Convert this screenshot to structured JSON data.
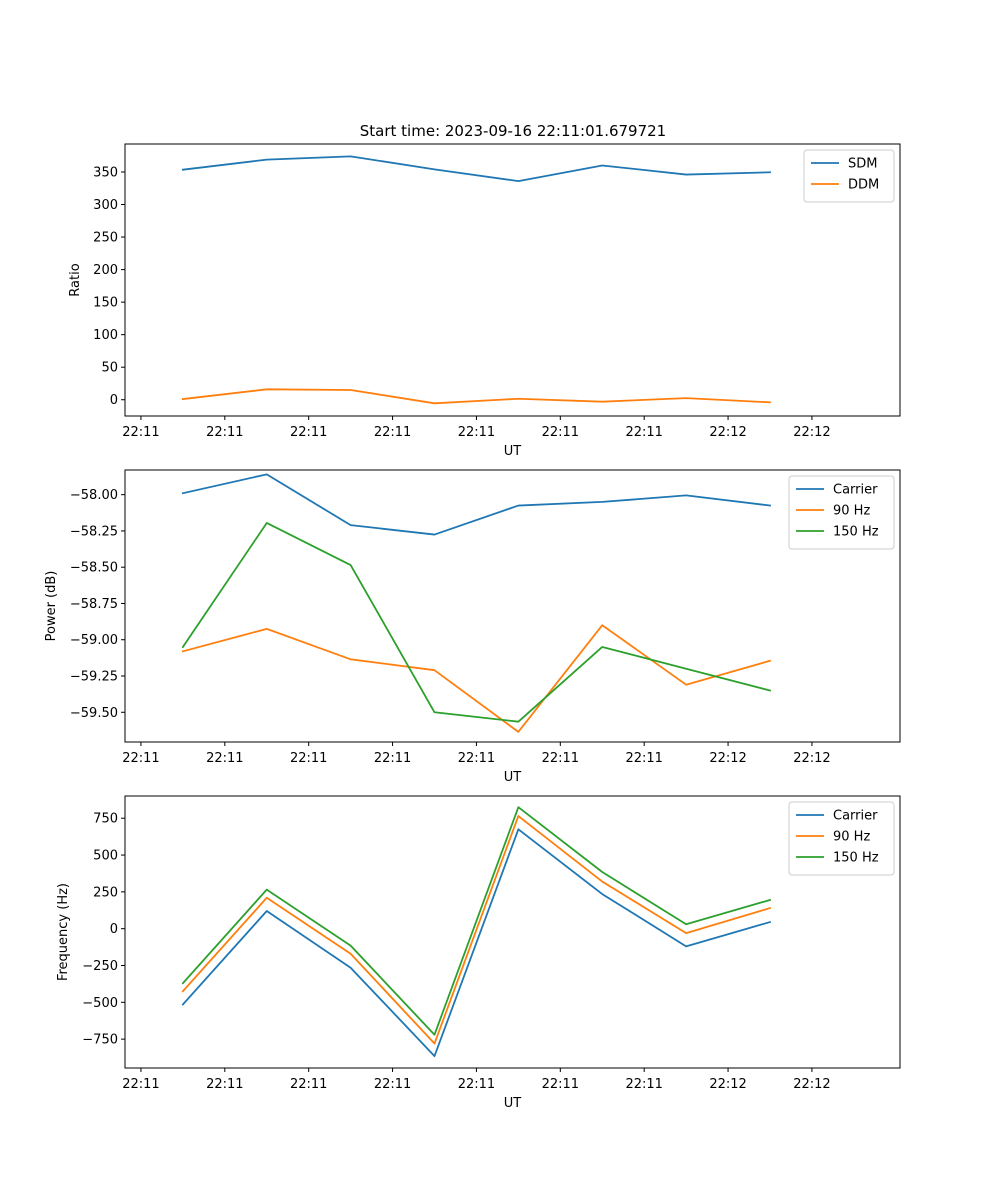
{
  "figure": {
    "title": "Start time: 2023-09-16 22:11:01.679721"
  },
  "x_tick_labels": [
    "22:11",
    "22:11",
    "22:11",
    "22:11",
    "22:11",
    "22:11",
    "22:11"
  ],
  "x_last_tick_label": "22:12",
  "colors": {
    "blue": "#1f77b4",
    "orange": "#ff7f0e",
    "green": "#2ca02c"
  },
  "chart_data": [
    {
      "type": "line",
      "xlabel": "UT",
      "ylabel": "Ratio",
      "xlim": [
        -0.19,
        9.05
      ],
      "ylim": [
        -25,
        393
      ],
      "yticks": [
        0,
        50,
        100,
        150,
        200,
        250,
        300,
        350
      ],
      "yticklabels": [
        "0",
        "50",
        "100",
        "150",
        "200",
        "250",
        "300",
        "350"
      ],
      "legend": "top-right",
      "x": [
        0.5,
        1.5,
        2.5,
        3.5,
        4.5,
        5.5,
        6.5,
        7.5
      ],
      "series": [
        {
          "name": "SDM",
          "color": "blue",
          "values": [
            353.5,
            369,
            374,
            354,
            336,
            360,
            346,
            349.5
          ]
        },
        {
          "name": "DDM",
          "color": "orange",
          "values": [
            1,
            16,
            15,
            -5.5,
            1.5,
            -3,
            2.5,
            -4
          ]
        }
      ]
    },
    {
      "type": "line",
      "xlabel": "UT",
      "ylabel": "Power (dB)",
      "xlim": [
        -0.19,
        9.05
      ],
      "ylim": [
        -59.705,
        -57.83
      ],
      "yticks": [
        -58.0,
        -58.25,
        -58.5,
        -58.75,
        -59.0,
        -59.25,
        -59.5
      ],
      "yticklabels": [
        "−58.00",
        "−58.25",
        "−58.50",
        "−58.75",
        "−59.00",
        "−59.25",
        "−59.50"
      ],
      "legend": "top-right",
      "x": [
        0.5,
        1.5,
        2.5,
        3.5,
        4.5,
        5.5,
        6.5,
        7.5
      ],
      "series": [
        {
          "name": "Carrier",
          "color": "blue",
          "values": [
            -57.99,
            -57.86,
            -58.21,
            -58.275,
            -58.075,
            -58.05,
            -58.005,
            -58.075
          ]
        },
        {
          "name": "90 Hz",
          "color": "orange",
          "values": [
            -59.08,
            -58.925,
            -59.135,
            -59.21,
            -59.635,
            -58.9,
            -59.31,
            -59.145
          ]
        },
        {
          "name": "150 Hz",
          "color": "green",
          "values": [
            -59.05,
            -58.195,
            -58.485,
            -59.5,
            -59.565,
            -59.05,
            -59.2,
            -59.35
          ]
        }
      ]
    },
    {
      "type": "line",
      "xlabel": "UT",
      "ylabel": "Frequency (Hz)",
      "xlim": [
        -0.19,
        9.05
      ],
      "ylim": [
        -946,
        901
      ],
      "yticks": [
        750,
        500,
        250,
        0,
        -250,
        -500,
        -750
      ],
      "yticklabels": [
        "750",
        "500",
        "250",
        "0",
        "−250",
        "−500",
        "−750"
      ],
      "legend": "top-right",
      "x": [
        0.5,
        1.5,
        2.5,
        3.5,
        4.5,
        5.5,
        6.5,
        7.5
      ],
      "series": [
        {
          "name": "Carrier",
          "color": "blue",
          "values": [
            -515,
            120,
            -265,
            -865,
            675,
            235,
            -120,
            45
          ]
        },
        {
          "name": "90 Hz",
          "color": "orange",
          "values": [
            -425,
            210,
            -170,
            -780,
            765,
            320,
            -30,
            140
          ]
        },
        {
          "name": "150 Hz",
          "color": "green",
          "values": [
            -370,
            265,
            -115,
            -720,
            825,
            385,
            30,
            195
          ]
        }
      ]
    }
  ]
}
